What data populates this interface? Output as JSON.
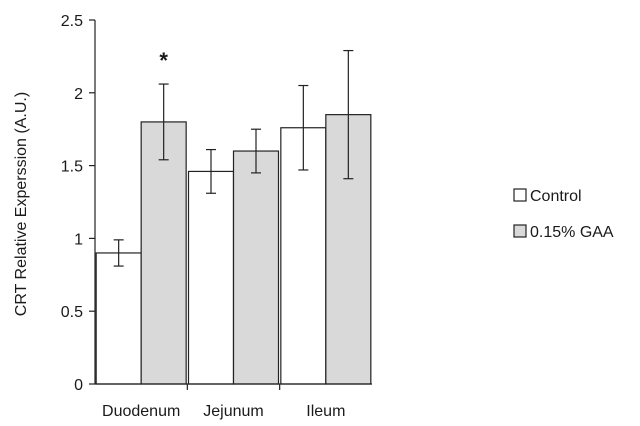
{
  "chart_data": {
    "type": "bar",
    "title": "",
    "xlabel": "",
    "ylabel": "CRT Relative Experssion (A.U.)",
    "ylim": [
      0,
      2.5
    ],
    "yticks": [
      "0",
      "0.5",
      "1",
      "1.5",
      "2",
      "2.5"
    ],
    "categories": [
      "Duodenum",
      "Jejunum",
      "Ileum"
    ],
    "series": [
      {
        "name": "Control",
        "values": [
          0.9,
          1.46,
          1.76
        ],
        "errors": [
          0.09,
          0.15,
          0.29
        ],
        "color": "#ffffff"
      },
      {
        "name": "0.15% GAA",
        "values": [
          1.8,
          1.6,
          1.85
        ],
        "errors": [
          0.26,
          0.15,
          0.44
        ],
        "color": "#d9d9d9"
      }
    ],
    "annotations": [
      {
        "text": "*",
        "category": "Duodenum",
        "series": "0.15% GAA"
      }
    ],
    "legend_position": "right",
    "grid": false
  }
}
